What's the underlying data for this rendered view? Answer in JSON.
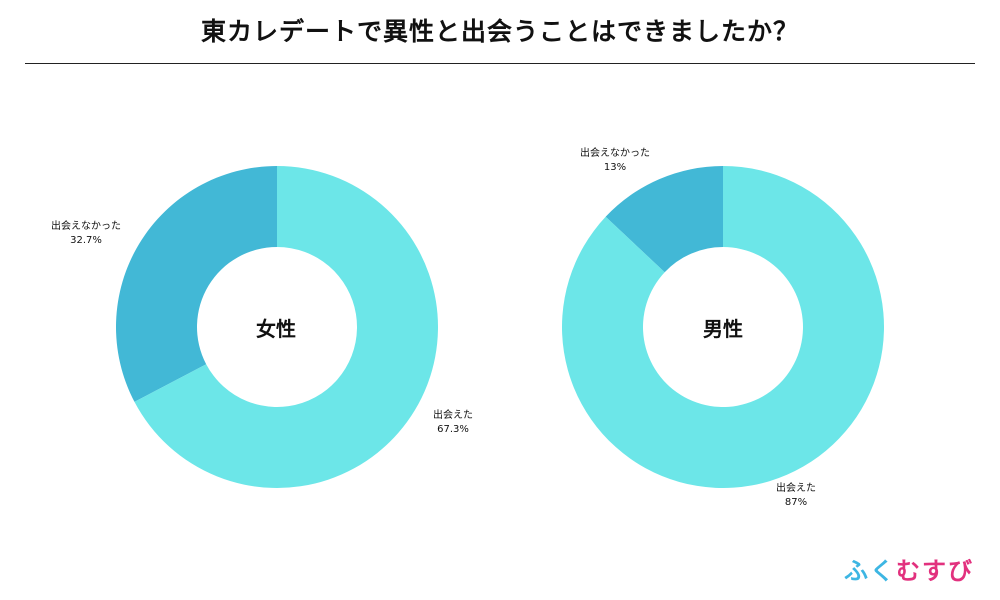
{
  "title": "東カレデートで異性と出会うことはできましたか？",
  "colors": {
    "met": "#6ce6e8",
    "not_met": "#42b8d6"
  },
  "chart_data": [
    {
      "type": "pie",
      "center_label": "女性",
      "slices": [
        {
          "label": "出会えなかった",
          "value": 32.7,
          "display": "32.7%",
          "color": "#42b8d6"
        },
        {
          "label": "出会えた",
          "value": 67.3,
          "display": "67.3%",
          "color": "#6ce6e8"
        }
      ]
    },
    {
      "type": "pie",
      "center_label": "男性",
      "slices": [
        {
          "label": "出会えなかった",
          "value": 13,
          "display": "13%",
          "color": "#42b8d6"
        },
        {
          "label": "出会えた",
          "value": 87,
          "display": "87%",
          "color": "#6ce6e8"
        }
      ]
    }
  ],
  "logo": {
    "chars": [
      "ふ",
      "く",
      "む",
      "す",
      "び"
    ]
  }
}
